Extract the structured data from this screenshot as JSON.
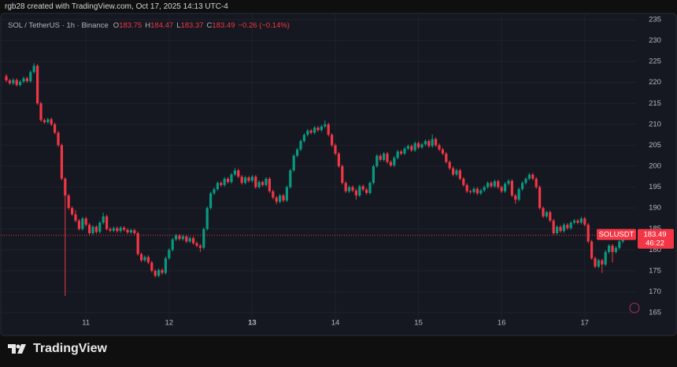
{
  "watermark": "rgb28 created with TradingView.com, Oct 17, 2025 14:13 UTC-4",
  "brand": "TradingView",
  "chart_data": {
    "type": "candlestick",
    "symbol": "SOL / TetherUS · 1h · Binance",
    "ohlc_labels": [
      "O",
      "H",
      "L",
      "C"
    ],
    "change": "−0.26 (−0.14%)",
    "price_tag": "SOLUSDT",
    "countdown": "46:22",
    "up_color": "#089981",
    "down_color": "#f23645",
    "ylim": [
      165,
      235
    ],
    "yticks": [
      165,
      170,
      175,
      180,
      185,
      190,
      195,
      200,
      205,
      210,
      215,
      220,
      225,
      230,
      235
    ],
    "categories": [
      null,
      null,
      null,
      null,
      null,
      null,
      null,
      null,
      null,
      null,
      null,
      null,
      null,
      null,
      null,
      null,
      null,
      null,
      null,
      null,
      null,
      null,
      null,
      "11",
      null,
      null,
      null,
      null,
      null,
      null,
      null,
      null,
      null,
      null,
      null,
      null,
      null,
      null,
      null,
      null,
      null,
      null,
      null,
      null,
      null,
      null,
      null,
      "12",
      null,
      null,
      null,
      null,
      null,
      null,
      null,
      null,
      null,
      null,
      null,
      null,
      null,
      null,
      null,
      null,
      null,
      null,
      null,
      null,
      null,
      null,
      null,
      "13",
      null,
      null,
      null,
      null,
      null,
      null,
      null,
      null,
      null,
      null,
      null,
      null,
      null,
      null,
      null,
      null,
      null,
      null,
      null,
      null,
      null,
      null,
      null,
      "14",
      null,
      null,
      null,
      null,
      null,
      null,
      null,
      null,
      null,
      null,
      null,
      null,
      null,
      null,
      null,
      null,
      null,
      null,
      null,
      null,
      null,
      null,
      null,
      "15",
      null,
      null,
      null,
      null,
      null,
      null,
      null,
      null,
      null,
      null,
      null,
      null,
      null,
      null,
      null,
      null,
      null,
      null,
      null,
      null,
      null,
      null,
      null,
      "16",
      null,
      null,
      null,
      null,
      null,
      null,
      null,
      null,
      null,
      null,
      null,
      null,
      null,
      null,
      null,
      null,
      null,
      null,
      null,
      null,
      null,
      null,
      null,
      "17",
      null,
      null,
      null,
      null,
      null,
      null,
      null,
      null,
      null,
      null,
      null,
      null
    ],
    "ohlc": [
      [
        221.5,
        222.0,
        220.1,
        220.5
      ],
      [
        220.5,
        220.9,
        219.4,
        219.8
      ],
      [
        219.8,
        221.0,
        219.4,
        220.6
      ],
      [
        220.6,
        221.0,
        219.0,
        219.4
      ],
      [
        219.4,
        220.6,
        219.0,
        220.2
      ],
      [
        220.2,
        221.4,
        219.8,
        221.0
      ],
      [
        221.0,
        221.4,
        219.9,
        220.3
      ],
      [
        220.3,
        222.9,
        219.9,
        222.5
      ],
      [
        222.5,
        224.6,
        222.1,
        224.0
      ],
      [
        224.0,
        224.4,
        214.6,
        215.0
      ],
      [
        215.0,
        215.4,
        210.6,
        211.0
      ],
      [
        211.0,
        211.4,
        210.1,
        210.5
      ],
      [
        210.5,
        211.6,
        210.1,
        211.2
      ],
      [
        211.2,
        211.6,
        209.6,
        210.0
      ],
      [
        210.0,
        210.4,
        207.6,
        208.0
      ],
      [
        208.0,
        208.4,
        204.6,
        205.0
      ],
      [
        205.0,
        205.4,
        196.6,
        197.0
      ],
      [
        197.0,
        197.4,
        169.0,
        193.0
      ],
      [
        193.0,
        193.4,
        189.6,
        190.0
      ],
      [
        190.0,
        190.4,
        188.1,
        188.5
      ],
      [
        188.5,
        189.5,
        186.6,
        187.0
      ],
      [
        187.0,
        187.4,
        184.6,
        185.0
      ],
      [
        185.0,
        187.9,
        184.6,
        187.5
      ],
      [
        187.5,
        187.9,
        185.6,
        186.0
      ],
      [
        186.0,
        186.4,
        183.6,
        184.0
      ],
      [
        184.0,
        185.9,
        183.6,
        185.5
      ],
      [
        185.5,
        185.9,
        183.9,
        184.3
      ],
      [
        184.3,
        186.9,
        183.9,
        186.5
      ],
      [
        186.5,
        188.9,
        186.1,
        188.0
      ],
      [
        188.0,
        188.4,
        184.6,
        185.0
      ],
      [
        185.0,
        185.4,
        184.2,
        184.6
      ],
      [
        184.6,
        185.6,
        184.2,
        185.2
      ],
      [
        185.2,
        185.6,
        184.1,
        184.5
      ],
      [
        184.5,
        185.7,
        184.1,
        185.3
      ],
      [
        185.3,
        185.7,
        184.4,
        184.8
      ],
      [
        184.8,
        185.2,
        183.8,
        184.2
      ],
      [
        184.2,
        185.1,
        183.8,
        184.7
      ],
      [
        184.7,
        185.1,
        183.6,
        184.0
      ],
      [
        184.0,
        184.4,
        178.6,
        179.0
      ],
      [
        179.0,
        179.4,
        177.1,
        177.5
      ],
      [
        177.5,
        178.7,
        177.1,
        178.3
      ],
      [
        178.3,
        178.7,
        176.6,
        177.0
      ],
      [
        177.0,
        177.4,
        174.6,
        175.0
      ],
      [
        175.0,
        175.4,
        173.4,
        173.8
      ],
      [
        173.8,
        175.6,
        173.4,
        175.2
      ],
      [
        175.2,
        175.6,
        174.1,
        174.5
      ],
      [
        174.5,
        178.4,
        174.1,
        178.0
      ],
      [
        178.0,
        180.4,
        177.6,
        180.0
      ],
      [
        180.0,
        182.9,
        179.6,
        182.5
      ],
      [
        182.5,
        183.8,
        182.1,
        183.4
      ],
      [
        183.4,
        183.8,
        182.2,
        182.6
      ],
      [
        182.6,
        183.6,
        182.2,
        183.2
      ],
      [
        183.2,
        183.6,
        181.6,
        182.0
      ],
      [
        182.0,
        183.2,
        181.6,
        182.8
      ],
      [
        182.8,
        183.2,
        181.2,
        181.6
      ],
      [
        181.6,
        182.0,
        180.6,
        181.0
      ],
      [
        181.0,
        181.4,
        179.5,
        180.5
      ],
      [
        180.5,
        185.4,
        180.1,
        185.0
      ],
      [
        185.0,
        190.4,
        184.6,
        190.0
      ],
      [
        190.0,
        193.9,
        189.6,
        193.5
      ],
      [
        193.5,
        194.9,
        193.1,
        194.5
      ],
      [
        194.5,
        196.4,
        194.1,
        196.0
      ],
      [
        196.0,
        196.4,
        195.1,
        195.5
      ],
      [
        195.5,
        197.4,
        195.1,
        197.0
      ],
      [
        197.0,
        197.4,
        195.8,
        196.2
      ],
      [
        196.2,
        198.4,
        195.8,
        198.0
      ],
      [
        198.0,
        199.6,
        197.6,
        199.0
      ],
      [
        199.0,
        199.4,
        197.1,
        197.5
      ],
      [
        197.5,
        197.9,
        195.6,
        196.0
      ],
      [
        196.0,
        197.7,
        195.6,
        197.3
      ],
      [
        197.3,
        197.7,
        196.1,
        196.5
      ],
      [
        196.5,
        197.9,
        196.1,
        197.5
      ],
      [
        197.5,
        197.9,
        194.6,
        195.0
      ],
      [
        195.0,
        196.6,
        194.6,
        196.2
      ],
      [
        196.2,
        196.6,
        195.1,
        195.5
      ],
      [
        195.5,
        197.4,
        195.1,
        197.0
      ],
      [
        197.0,
        197.4,
        193.6,
        194.0
      ],
      [
        194.0,
        194.4,
        192.1,
        192.5
      ],
      [
        192.5,
        192.9,
        190.9,
        191.5
      ],
      [
        191.5,
        193.4,
        191.1,
        193.0
      ],
      [
        193.0,
        193.4,
        191.4,
        191.8
      ],
      [
        191.8,
        195.4,
        191.4,
        195.0
      ],
      [
        195.0,
        199.4,
        194.6,
        199.0
      ],
      [
        199.0,
        202.9,
        198.6,
        202.5
      ],
      [
        202.5,
        204.4,
        202.1,
        204.0
      ],
      [
        204.0,
        206.4,
        203.6,
        206.0
      ],
      [
        206.0,
        207.9,
        205.6,
        207.5
      ],
      [
        207.5,
        208.9,
        207.1,
        208.5
      ],
      [
        208.5,
        208.9,
        207.6,
        208.0
      ],
      [
        208.0,
        209.6,
        207.6,
        209.2
      ],
      [
        209.2,
        209.6,
        208.2,
        208.6
      ],
      [
        208.6,
        209.9,
        208.2,
        209.5
      ],
      [
        209.5,
        211.0,
        209.1,
        210.0
      ],
      [
        210.0,
        210.4,
        207.1,
        207.5
      ],
      [
        207.5,
        207.9,
        204.6,
        205.0
      ],
      [
        205.0,
        205.4,
        202.6,
        203.0
      ],
      [
        203.0,
        203.4,
        199.6,
        200.0
      ],
      [
        200.0,
        200.4,
        195.6,
        196.0
      ],
      [
        196.0,
        196.4,
        193.6,
        194.0
      ],
      [
        194.0,
        195.4,
        193.6,
        195.0
      ],
      [
        195.0,
        195.4,
        193.8,
        194.2
      ],
      [
        194.2,
        194.6,
        192.0,
        193.0
      ],
      [
        193.0,
        195.6,
        192.6,
        195.2
      ],
      [
        195.2,
        195.6,
        194.0,
        194.4
      ],
      [
        194.4,
        194.8,
        193.2,
        193.6
      ],
      [
        193.6,
        196.4,
        193.2,
        196.0
      ],
      [
        196.0,
        200.4,
        195.6,
        200.0
      ],
      [
        200.0,
        202.9,
        199.6,
        202.5
      ],
      [
        202.5,
        202.9,
        201.1,
        201.5
      ],
      [
        201.5,
        203.4,
        201.1,
        203.0
      ],
      [
        203.0,
        203.4,
        200.6,
        201.0
      ],
      [
        201.0,
        201.4,
        199.8,
        200.2
      ],
      [
        200.2,
        202.4,
        199.8,
        202.0
      ],
      [
        202.0,
        203.9,
        201.6,
        203.5
      ],
      [
        203.5,
        203.9,
        202.6,
        203.0
      ],
      [
        203.0,
        204.6,
        202.6,
        204.2
      ],
      [
        204.2,
        205.2,
        203.8,
        204.8
      ],
      [
        204.8,
        205.2,
        203.4,
        203.8
      ],
      [
        203.8,
        205.9,
        203.4,
        205.5
      ],
      [
        205.5,
        205.9,
        204.1,
        204.5
      ],
      [
        204.5,
        205.6,
        204.1,
        205.2
      ],
      [
        205.2,
        206.4,
        204.8,
        206.0
      ],
      [
        206.0,
        206.4,
        204.4,
        204.8
      ],
      [
        204.8,
        207.6,
        204.4,
        206.5
      ],
      [
        206.5,
        206.9,
        204.6,
        205.0
      ],
      [
        205.0,
        205.4,
        203.6,
        204.0
      ],
      [
        204.0,
        204.4,
        202.6,
        203.0
      ],
      [
        203.0,
        203.4,
        200.6,
        201.0
      ],
      [
        201.0,
        201.4,
        199.1,
        199.5
      ],
      [
        199.5,
        199.9,
        197.6,
        198.0
      ],
      [
        198.0,
        199.4,
        197.6,
        199.0
      ],
      [
        199.0,
        199.4,
        196.6,
        197.0
      ],
      [
        197.0,
        197.4,
        195.1,
        195.5
      ],
      [
        195.5,
        195.9,
        193.6,
        194.0
      ],
      [
        194.0,
        194.4,
        193.4,
        193.8
      ],
      [
        193.8,
        195.0,
        193.4,
        194.6
      ],
      [
        194.6,
        195.0,
        193.1,
        193.5
      ],
      [
        193.5,
        194.6,
        193.1,
        194.2
      ],
      [
        194.2,
        195.4,
        193.8,
        195.0
      ],
      [
        195.0,
        196.4,
        194.6,
        196.0
      ],
      [
        196.0,
        196.4,
        194.8,
        195.2
      ],
      [
        195.2,
        196.8,
        194.8,
        196.4
      ],
      [
        196.4,
        196.8,
        194.6,
        195.0
      ],
      [
        195.0,
        195.4,
        193.6,
        194.0
      ],
      [
        194.0,
        196.2,
        193.6,
        195.8
      ],
      [
        195.8,
        196.9,
        195.4,
        196.5
      ],
      [
        196.5,
        196.9,
        192.6,
        193.0
      ],
      [
        193.0,
        193.4,
        191.0,
        192.0
      ],
      [
        192.0,
        194.9,
        191.6,
        194.5
      ],
      [
        194.5,
        196.4,
        194.1,
        196.0
      ],
      [
        196.0,
        197.4,
        195.6,
        197.0
      ],
      [
        197.0,
        198.4,
        196.6,
        198.0
      ],
      [
        198.0,
        198.4,
        196.6,
        197.0
      ],
      [
        197.0,
        197.4,
        194.6,
        195.0
      ],
      [
        195.0,
        195.4,
        189.6,
        190.0
      ],
      [
        190.0,
        190.4,
        187.6,
        188.0
      ],
      [
        188.0,
        189.4,
        187.6,
        189.0
      ],
      [
        189.0,
        189.4,
        186.6,
        187.0
      ],
      [
        187.0,
        187.4,
        183.6,
        184.0
      ],
      [
        184.0,
        185.9,
        183.6,
        185.5
      ],
      [
        185.5,
        185.9,
        184.1,
        184.5
      ],
      [
        184.5,
        186.4,
        184.1,
        186.0
      ],
      [
        186.0,
        186.4,
        184.8,
        185.2
      ],
      [
        185.2,
        186.9,
        184.8,
        186.5
      ],
      [
        186.5,
        187.4,
        186.1,
        187.0
      ],
      [
        187.0,
        187.4,
        186.1,
        186.5
      ],
      [
        186.5,
        187.9,
        186.1,
        187.5
      ],
      [
        187.5,
        187.9,
        185.6,
        186.0
      ],
      [
        186.0,
        186.4,
        181.6,
        182.0
      ],
      [
        182.0,
        182.4,
        177.6,
        178.0
      ],
      [
        178.0,
        178.4,
        175.6,
        176.0
      ],
      [
        176.0,
        177.9,
        175.6,
        177.5
      ],
      [
        177.5,
        177.9,
        174.5,
        176.5
      ],
      [
        176.5,
        179.9,
        176.1,
        179.5
      ],
      [
        179.5,
        181.4,
        179.1,
        181.0
      ],
      [
        181.0,
        181.4,
        177.0,
        179.5
      ],
      [
        179.5,
        180.9,
        179.1,
        180.5
      ],
      [
        180.5,
        182.4,
        180.1,
        182.0
      ],
      [
        182.0,
        184.1,
        181.6,
        183.75
      ],
      [
        183.75,
        184.47,
        183.37,
        183.49
      ]
    ]
  }
}
